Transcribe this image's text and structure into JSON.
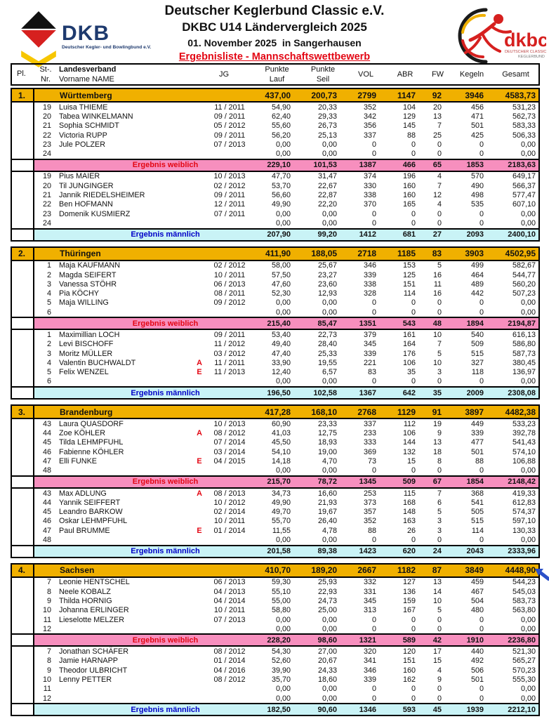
{
  "header": {
    "title1": "Deutscher Keglerbund Classic e.V.",
    "title2": "DKBC U14 Ländervergleich 2025",
    "title3": "01. November 2025  in Sangerhausen",
    "list_title": "Ergebnisliste - Mannschaftswettbewerb",
    "dkb_logo": {
      "text": "DKB",
      "tagline": "Deutscher Kegler- und Bowlingbund e.V."
    },
    "dkbc_logo": {
      "text": "dkbc",
      "caption1": "DEUTSCHER CLASSIC e.V.",
      "caption2": "KEGLERBUND"
    }
  },
  "table_header": {
    "pl": "Pl.",
    "st": "St-.",
    "nr": "Nr.",
    "landesverband": "Landesverband",
    "vorname": "Vorname NAME",
    "jg": "JG",
    "punkte": "Punkte",
    "lauf": "Lauf",
    "seil": "Seil",
    "vol": "VOL",
    "abr": "ABR",
    "fw": "FW",
    "kegeln": "Kegeln",
    "gesamt": "Gesamt"
  },
  "summary_labels": {
    "female": "Ergebnis weiblich",
    "male": "Ergebnis männlich"
  },
  "colors": {
    "team_row": "#f0b000",
    "female_row": "#f78fbe",
    "male_row": "#c9f3f6",
    "accent_red": "#e30613",
    "accent_blue": "#0000c8",
    "annotation_blue": "#2b50c8"
  },
  "teams": [
    {
      "rank": "1.",
      "name": "Württemberg",
      "totals": {
        "lauf": "437,00",
        "seil": "200,73",
        "vol": "2799",
        "abr": "1147",
        "fw": "92",
        "kegeln": "3946",
        "gesamt": "4583,73"
      },
      "female_players": [
        {
          "nr": "19",
          "name": "Luisa THIEME",
          "flag": "",
          "jg": "11 / 2011",
          "lauf": "54,90",
          "seil": "20,33",
          "vol": "352",
          "abr": "104",
          "fw": "20",
          "kegeln": "456",
          "gesamt": "531,23"
        },
        {
          "nr": "20",
          "name": "Tabea WINKELMANN",
          "flag": "",
          "jg": "09 / 2011",
          "lauf": "62,40",
          "seil": "29,33",
          "vol": "342",
          "abr": "129",
          "fw": "13",
          "kegeln": "471",
          "gesamt": "562,73"
        },
        {
          "nr": "21",
          "name": "Sophia SCHMIDT",
          "flag": "",
          "jg": "05 / 2012",
          "lauf": "55,60",
          "seil": "26,73",
          "vol": "356",
          "abr": "145",
          "fw": "7",
          "kegeln": "501",
          "gesamt": "583,33"
        },
        {
          "nr": "22",
          "name": "Victoria RUPP",
          "flag": "",
          "jg": "09 / 2011",
          "lauf": "56,20",
          "seil": "25,13",
          "vol": "337",
          "abr": "88",
          "fw": "25",
          "kegeln": "425",
          "gesamt": "506,33"
        },
        {
          "nr": "23",
          "name": "Jule POLZER",
          "flag": "",
          "jg": "07 / 2013",
          "lauf": "0,00",
          "seil": "0,00",
          "vol": "0",
          "abr": "0",
          "fw": "0",
          "kegeln": "0",
          "gesamt": "0,00"
        },
        {
          "nr": "24",
          "name": "",
          "flag": "",
          "jg": "",
          "lauf": "0,00",
          "seil": "0,00",
          "vol": "0",
          "abr": "0",
          "fw": "0",
          "kegeln": "0",
          "gesamt": "0,00"
        }
      ],
      "female_summary": {
        "lauf": "229,10",
        "seil": "101,53",
        "vol": "1387",
        "abr": "466",
        "fw": "65",
        "kegeln": "1853",
        "gesamt": "2183,63"
      },
      "male_players": [
        {
          "nr": "19",
          "name": "Pius MAIER",
          "flag": "",
          "jg": "10 / 2013",
          "lauf": "47,70",
          "seil": "31,47",
          "vol": "374",
          "abr": "196",
          "fw": "4",
          "kegeln": "570",
          "gesamt": "649,17"
        },
        {
          "nr": "20",
          "name": "Til JUNGINGER",
          "flag": "",
          "jg": "02 / 2012",
          "lauf": "53,70",
          "seil": "22,67",
          "vol": "330",
          "abr": "160",
          "fw": "7",
          "kegeln": "490",
          "gesamt": "566,37"
        },
        {
          "nr": "21",
          "name": "Jannik RIEDELSHEIMER",
          "flag": "",
          "jg": "09 / 2011",
          "lauf": "56,60",
          "seil": "22,87",
          "vol": "338",
          "abr": "160",
          "fw": "12",
          "kegeln": "498",
          "gesamt": "577,47"
        },
        {
          "nr": "22",
          "name": "Ben HOFMANN",
          "flag": "",
          "jg": "12 / 2011",
          "lauf": "49,90",
          "seil": "22,20",
          "vol": "370",
          "abr": "165",
          "fw": "4",
          "kegeln": "535",
          "gesamt": "607,10"
        },
        {
          "nr": "23",
          "name": "Domenik KUSMIERZ",
          "flag": "",
          "jg": "07 / 2011",
          "lauf": "0,00",
          "seil": "0,00",
          "vol": "0",
          "abr": "0",
          "fw": "0",
          "kegeln": "0",
          "gesamt": "0,00"
        },
        {
          "nr": "24",
          "name": "",
          "flag": "",
          "jg": "",
          "lauf": "0,00",
          "seil": "0,00",
          "vol": "0",
          "abr": "0",
          "fw": "0",
          "kegeln": "0",
          "gesamt": "0,00"
        }
      ],
      "male_summary": {
        "lauf": "207,90",
        "seil": "99,20",
        "vol": "1412",
        "abr": "681",
        "fw": "27",
        "kegeln": "2093",
        "gesamt": "2400,10"
      }
    },
    {
      "rank": "2.",
      "name": "Thüringen",
      "totals": {
        "lauf": "411,90",
        "seil": "188,05",
        "vol": "2718",
        "abr": "1185",
        "fw": "83",
        "kegeln": "3903",
        "gesamt": "4502,95"
      },
      "female_players": [
        {
          "nr": "1",
          "name": "Maja KAUFMANN",
          "flag": "",
          "jg": "02 / 2012",
          "lauf": "58,00",
          "seil": "25,67",
          "vol": "346",
          "abr": "153",
          "fw": "5",
          "kegeln": "499",
          "gesamt": "582,67"
        },
        {
          "nr": "2",
          "name": "Magda SEIFERT",
          "flag": "",
          "jg": "10 / 2011",
          "lauf": "57,50",
          "seil": "23,27",
          "vol": "339",
          "abr": "125",
          "fw": "16",
          "kegeln": "464",
          "gesamt": "544,77"
        },
        {
          "nr": "3",
          "name": "Vanessa STÖHR",
          "flag": "",
          "jg": "06 / 2013",
          "lauf": "47,60",
          "seil": "23,60",
          "vol": "338",
          "abr": "151",
          "fw": "11",
          "kegeln": "489",
          "gesamt": "560,20"
        },
        {
          "nr": "4",
          "name": "Pia KÖCHY",
          "flag": "",
          "jg": "08 / 2011",
          "lauf": "52,30",
          "seil": "12,93",
          "vol": "328",
          "abr": "114",
          "fw": "16",
          "kegeln": "442",
          "gesamt": "507,23"
        },
        {
          "nr": "5",
          "name": "Maja WILLING",
          "flag": "",
          "jg": "09 / 2012",
          "lauf": "0,00",
          "seil": "0,00",
          "vol": "0",
          "abr": "0",
          "fw": "0",
          "kegeln": "0",
          "gesamt": "0,00"
        },
        {
          "nr": "6",
          "name": "",
          "flag": "",
          "jg": "",
          "lauf": "0,00",
          "seil": "0,00",
          "vol": "0",
          "abr": "0",
          "fw": "0",
          "kegeln": "0",
          "gesamt": "0,00"
        }
      ],
      "female_summary": {
        "lauf": "215,40",
        "seil": "85,47",
        "vol": "1351",
        "abr": "543",
        "fw": "48",
        "kegeln": "1894",
        "gesamt": "2194,87"
      },
      "male_players": [
        {
          "nr": "1",
          "name": "Maximillian LOCH",
          "flag": "",
          "jg": "09 / 2011",
          "lauf": "53,40",
          "seil": "22,73",
          "vol": "379",
          "abr": "161",
          "fw": "10",
          "kegeln": "540",
          "gesamt": "616,13"
        },
        {
          "nr": "2",
          "name": "Levi BISCHOFF",
          "flag": "",
          "jg": "11 / 2012",
          "lauf": "49,40",
          "seil": "28,40",
          "vol": "345",
          "abr": "164",
          "fw": "7",
          "kegeln": "509",
          "gesamt": "586,80"
        },
        {
          "nr": "3",
          "name": "Moritz MÜLLER",
          "flag": "",
          "jg": "03 / 2012",
          "lauf": "47,40",
          "seil": "25,33",
          "vol": "339",
          "abr": "176",
          "fw": "5",
          "kegeln": "515",
          "gesamt": "587,73"
        },
        {
          "nr": "4",
          "name": "Valentin BUCHWALDT",
          "flag": "A",
          "jg": "11 / 2011",
          "lauf": "33,90",
          "seil": "19,55",
          "vol": "221",
          "abr": "106",
          "fw": "10",
          "kegeln": "327",
          "gesamt": "380,45"
        },
        {
          "nr": "5",
          "name": "Felix WENZEL",
          "flag": "E",
          "jg": "11 / 2013",
          "lauf": "12,40",
          "seil": "6,57",
          "vol": "83",
          "abr": "35",
          "fw": "3",
          "kegeln": "118",
          "gesamt": "136,97"
        },
        {
          "nr": "6",
          "name": "",
          "flag": "",
          "jg": "",
          "lauf": "0,00",
          "seil": "0,00",
          "vol": "0",
          "abr": "0",
          "fw": "0",
          "kegeln": "0",
          "gesamt": "0,00"
        }
      ],
      "male_summary": {
        "lauf": "196,50",
        "seil": "102,58",
        "vol": "1367",
        "abr": "642",
        "fw": "35",
        "kegeln": "2009",
        "gesamt": "2308,08"
      }
    },
    {
      "rank": "3.",
      "name": "Brandenburg",
      "totals": {
        "lauf": "417,28",
        "seil": "168,10",
        "vol": "2768",
        "abr": "1129",
        "fw": "91",
        "kegeln": "3897",
        "gesamt": "4482,38"
      },
      "female_players": [
        {
          "nr": "43",
          "name": "Laura QUASDORF",
          "flag": "",
          "jg": "10 / 2013",
          "lauf": "60,90",
          "seil": "23,33",
          "vol": "337",
          "abr": "112",
          "fw": "19",
          "kegeln": "449",
          "gesamt": "533,23"
        },
        {
          "nr": "44",
          "name": "Zoe KÖHLER",
          "flag": "A",
          "jg": "08 / 2012",
          "lauf": "41,03",
          "seil": "12,75",
          "vol": "233",
          "abr": "106",
          "fw": "9",
          "kegeln": "339",
          "gesamt": "392,78"
        },
        {
          "nr": "45",
          "name": "Tilda LEHMPFUHL",
          "flag": "",
          "jg": "07 / 2014",
          "lauf": "45,50",
          "seil": "18,93",
          "vol": "333",
          "abr": "144",
          "fw": "13",
          "kegeln": "477",
          "gesamt": "541,43"
        },
        {
          "nr": "46",
          "name": "Fabienne KÖHLER",
          "flag": "",
          "jg": "03 / 2014",
          "lauf": "54,10",
          "seil": "19,00",
          "vol": "369",
          "abr": "132",
          "fw": "18",
          "kegeln": "501",
          "gesamt": "574,10"
        },
        {
          "nr": "47",
          "name": "Elli FUNKE",
          "flag": "E",
          "jg": "04 / 2015",
          "lauf": "14,18",
          "seil": "4,70",
          "vol": "73",
          "abr": "15",
          "fw": "8",
          "kegeln": "88",
          "gesamt": "106,88"
        },
        {
          "nr": "48",
          "name": "",
          "flag": "",
          "jg": "",
          "lauf": "0,00",
          "seil": "0,00",
          "vol": "0",
          "abr": "0",
          "fw": "0",
          "kegeln": "0",
          "gesamt": "0,00"
        }
      ],
      "female_summary": {
        "lauf": "215,70",
        "seil": "78,72",
        "vol": "1345",
        "abr": "509",
        "fw": "67",
        "kegeln": "1854",
        "gesamt": "2148,42"
      },
      "male_players": [
        {
          "nr": "43",
          "name": "Max ADLUNG",
          "flag": "A",
          "jg": "08 / 2013",
          "lauf": "34,73",
          "seil": "16,60",
          "vol": "253",
          "abr": "115",
          "fw": "7",
          "kegeln": "368",
          "gesamt": "419,33"
        },
        {
          "nr": "44",
          "name": "Yannik SEIFFERT",
          "flag": "",
          "jg": "10 / 2012",
          "lauf": "49,90",
          "seil": "21,93",
          "vol": "373",
          "abr": "168",
          "fw": "6",
          "kegeln": "541",
          "gesamt": "612,83"
        },
        {
          "nr": "45",
          "name": "Leandro BARKOW",
          "flag": "",
          "jg": "02 / 2014",
          "lauf": "49,70",
          "seil": "19,67",
          "vol": "357",
          "abr": "148",
          "fw": "5",
          "kegeln": "505",
          "gesamt": "574,37"
        },
        {
          "nr": "46",
          "name": "Oskar LEHMPFUHL",
          "flag": "",
          "jg": "10 / 2011",
          "lauf": "55,70",
          "seil": "26,40",
          "vol": "352",
          "abr": "163",
          "fw": "3",
          "kegeln": "515",
          "gesamt": "597,10"
        },
        {
          "nr": "47",
          "name": "Paul BRUMME",
          "flag": "E",
          "jg": "01 / 2014",
          "lauf": "11,55",
          "seil": "4,78",
          "vol": "88",
          "abr": "26",
          "fw": "3",
          "kegeln": "114",
          "gesamt": "130,33"
        },
        {
          "nr": "48",
          "name": "",
          "flag": "",
          "jg": "",
          "lauf": "0,00",
          "seil": "0,00",
          "vol": "0",
          "abr": "0",
          "fw": "0",
          "kegeln": "0",
          "gesamt": "0,00"
        }
      ],
      "male_summary": {
        "lauf": "201,58",
        "seil": "89,38",
        "vol": "1423",
        "abr": "620",
        "fw": "24",
        "kegeln": "2043",
        "gesamt": "2333,96"
      }
    },
    {
      "rank": "4.",
      "name": "Sachsen",
      "totals": {
        "lauf": "410,70",
        "seil": "189,20",
        "vol": "2667",
        "abr": "1182",
        "fw": "87",
        "kegeln": "3849",
        "gesamt": "4448,90"
      },
      "female_players": [
        {
          "nr": "7",
          "name": "Leonie HENTSCHEL",
          "flag": "",
          "jg": "06 / 2013",
          "lauf": "59,30",
          "seil": "25,93",
          "vol": "332",
          "abr": "127",
          "fw": "13",
          "kegeln": "459",
          "gesamt": "544,23"
        },
        {
          "nr": "8",
          "name": "Neele KOBALZ",
          "flag": "",
          "jg": "04 / 2013",
          "lauf": "55,10",
          "seil": "22,93",
          "vol": "331",
          "abr": "136",
          "fw": "14",
          "kegeln": "467",
          "gesamt": "545,03"
        },
        {
          "nr": "9",
          "name": "Thilda HORNIG",
          "flag": "",
          "jg": "04 / 2014",
          "lauf": "55,00",
          "seil": "24,73",
          "vol": "345",
          "abr": "159",
          "fw": "10",
          "kegeln": "504",
          "gesamt": "583,73"
        },
        {
          "nr": "10",
          "name": "Johanna ERLINGER",
          "flag": "",
          "jg": "10 / 2011",
          "lauf": "58,80",
          "seil": "25,00",
          "vol": "313",
          "abr": "167",
          "fw": "5",
          "kegeln": "480",
          "gesamt": "563,80"
        },
        {
          "nr": "11",
          "name": "Lieselotte MELZER",
          "flag": "",
          "jg": "07 / 2013",
          "lauf": "0,00",
          "seil": "0,00",
          "vol": "0",
          "abr": "0",
          "fw": "0",
          "kegeln": "0",
          "gesamt": "0,00"
        },
        {
          "nr": "12",
          "name": "",
          "flag": "",
          "jg": "",
          "lauf": "0,00",
          "seil": "0,00",
          "vol": "0",
          "abr": "0",
          "fw": "0",
          "kegeln": "0",
          "gesamt": "0,00"
        }
      ],
      "female_summary": {
        "lauf": "228,20",
        "seil": "98,60",
        "vol": "1321",
        "abr": "589",
        "fw": "42",
        "kegeln": "1910",
        "gesamt": "2236,80"
      },
      "male_players": [
        {
          "nr": "7",
          "name": "Jonathan SCHÄFER",
          "flag": "",
          "jg": "08 / 2012",
          "lauf": "54,30",
          "seil": "27,00",
          "vol": "320",
          "abr": "120",
          "fw": "17",
          "kegeln": "440",
          "gesamt": "521,30"
        },
        {
          "nr": "8",
          "name": "Jamie HARNAPP",
          "flag": "",
          "jg": "01 / 2014",
          "lauf": "52,60",
          "seil": "20,67",
          "vol": "341",
          "abr": "151",
          "fw": "15",
          "kegeln": "492",
          "gesamt": "565,27"
        },
        {
          "nr": "9",
          "name": "Theodor ULBRICHT",
          "flag": "",
          "jg": "04 / 2016",
          "lauf": "39,90",
          "seil": "24,33",
          "vol": "346",
          "abr": "160",
          "fw": "4",
          "kegeln": "506",
          "gesamt": "570,23"
        },
        {
          "nr": "10",
          "name": "Lenny PETTER",
          "flag": "",
          "jg": "08 / 2012",
          "lauf": "35,70",
          "seil": "18,60",
          "vol": "339",
          "abr": "162",
          "fw": "9",
          "kegeln": "501",
          "gesamt": "555,30"
        },
        {
          "nr": "11",
          "name": "",
          "flag": "",
          "jg": "",
          "lauf": "0,00",
          "seil": "0,00",
          "vol": "0",
          "abr": "0",
          "fw": "0",
          "kegeln": "0",
          "gesamt": "0,00"
        },
        {
          "nr": "12",
          "name": "",
          "flag": "",
          "jg": "",
          "lauf": "0,00",
          "seil": "0,00",
          "vol": "0",
          "abr": "0",
          "fw": "0",
          "kegeln": "0",
          "gesamt": "0,00"
        }
      ],
      "male_summary": {
        "lauf": "182,50",
        "seil": "90,60",
        "vol": "1346",
        "abr": "593",
        "fw": "45",
        "kegeln": "1939",
        "gesamt": "2212,10"
      }
    }
  ]
}
